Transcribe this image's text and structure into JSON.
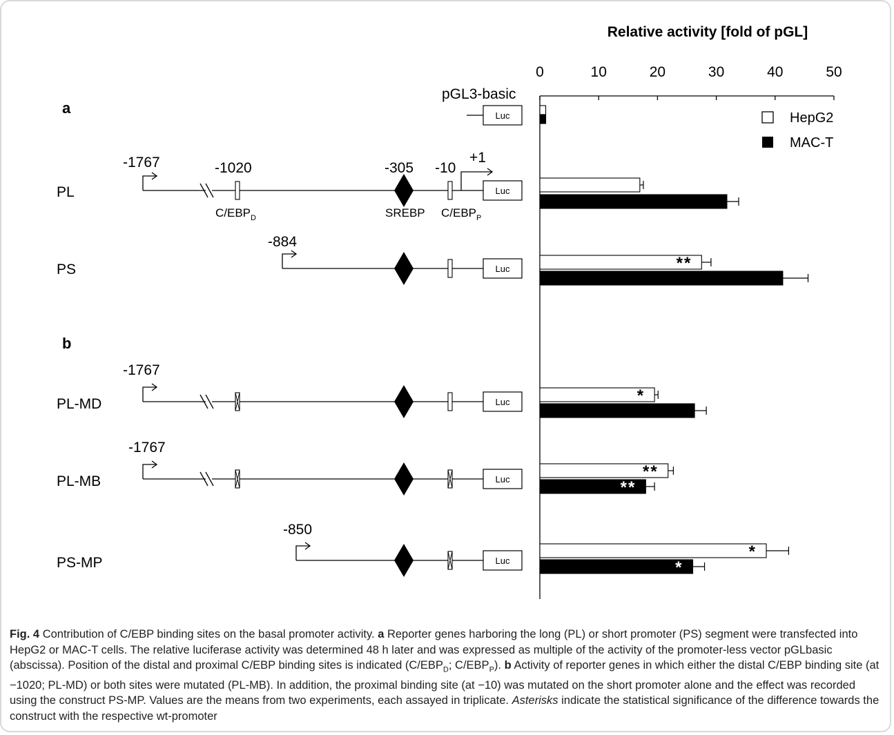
{
  "figure": {
    "axis_title": "Relative activity [fold of pGL]",
    "ticks": [
      "0",
      "10",
      "20",
      "30",
      "40",
      "50"
    ],
    "panel_a": "a",
    "panel_b": "b",
    "luc": "Luc",
    "pgl3_label": "pGL3-basic",
    "positions": {
      "p1767": "-1767",
      "p1020": "-1020",
      "p305": "-305",
      "p10": "-10",
      "plus1": "+1",
      "p884": "-884",
      "p850": "-850"
    },
    "sites": {
      "cebp_d": "C/EBP",
      "cebp_d_sub": "D",
      "srebp": "SREBP",
      "cebp_p": "C/EBP",
      "cebp_p_sub": "P"
    },
    "legend": {
      "hepg2": "HepG2",
      "mact": "MAC-T"
    }
  },
  "chart_data": {
    "type": "bar",
    "orientation": "horizontal",
    "title": "",
    "xlabel": "Relative activity [fold of pGL]",
    "xlim": [
      0,
      50
    ],
    "categories": [
      "pGL3-basic",
      "PL",
      "PS",
      "PL-MD",
      "PL-MB",
      "PS-MP"
    ],
    "series": [
      {
        "name": "HepG2",
        "color": "#ffffff",
        "values": [
          1,
          17,
          27.5,
          19.5,
          21.8,
          38.5
        ],
        "errors": [
          0,
          0.6,
          1.6,
          0.6,
          0.9,
          3.8
        ],
        "annotations": [
          "",
          "",
          "**",
          "*",
          "**",
          "*"
        ]
      },
      {
        "name": "MAC-T",
        "color": "#000000",
        "values": [
          1,
          31.8,
          41.3,
          26.3,
          18,
          26
        ],
        "errors": [
          0,
          2,
          4.3,
          2,
          1.5,
          2
        ],
        "annotations": [
          "",
          "",
          "",
          "",
          "**",
          "*"
        ]
      }
    ]
  },
  "caption": {
    "fig_label": "Fig. 4",
    "title_text": "Contribution of C/EBP binding sites on the basal promoter activity.",
    "a_label": "a",
    "a_text1": "Reporter genes harboring the long (PL) or short promoter (PS) segment were transfected into HepG2 or MAC-T cells. The relative luciferase activity was determined 48 h later and was expressed as multiple of the activity of the promoter-less vector pGLbasic (abscissa). Position of the distal and proximal C/EBP binding sites is indicated (C/EBP",
    "a_sub1": "D",
    "a_text2": "; C/EBP",
    "a_sub2": "P",
    "a_text3": ").",
    "b_label": "b",
    "b_text": "Activity of reporter genes in which either the distal C/EBP binding site (at −1020; PL-MD) or both sites were mutated (PL-MB). In addition, the proximal binding site (at −10) was mutated on the short promoter alone and the effect was recorded using the construct PS-MP. Values are the means from two experiments, each assayed in triplicate.",
    "asterisks_word": "Asterisks",
    "end_text": "indicate the statistical significance of the difference towards the construct with the respective wt-promoter"
  }
}
